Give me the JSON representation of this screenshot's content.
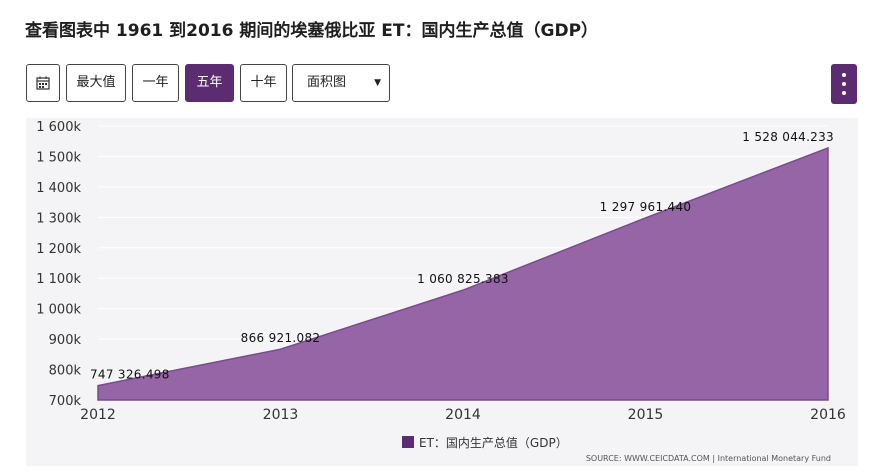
{
  "title": "查看图表中 1961 到2016 期间的埃塞俄比亚 ET：国内生产总值（GDP）",
  "toolbar": {
    "calendar_icon": "calendar-icon",
    "buttons": [
      "最大值",
      "一年",
      "五年",
      "十年"
    ],
    "active_button": "五年",
    "chart_type_select": "面积图",
    "menu_icon": "vertical-dots-icon"
  },
  "colors": {
    "accent": "#5b2c6f",
    "area_fill": "#9565a5",
    "area_stroke": "#7b4a8f"
  },
  "chart_data": {
    "type": "area",
    "x": [
      2012,
      2013,
      2014,
      2015,
      2016
    ],
    "x_tick_labels": [
      "2012",
      "2013",
      "2014",
      "2015",
      "2016"
    ],
    "series": [
      {
        "name": "ET：国内生产总值（GDP）",
        "values": [
          747326.498,
          866921.082,
          1060825.383,
          1297961.44,
          1528044.233
        ],
        "labels": [
          "747 326.498",
          "866 921.082",
          "1 060 825.383",
          "1 297 961.440",
          "1 528 044.233"
        ]
      }
    ],
    "y_ticks": [
      700000,
      800000,
      900000,
      1000000,
      1100000,
      1200000,
      1300000,
      1400000,
      1500000,
      1600000
    ],
    "y_tick_labels": [
      "700k",
      "800k",
      "900k",
      "1 000k",
      "1 100k",
      "1 200k",
      "1 300k",
      "1 400k",
      "1 500k",
      "1 600k"
    ],
    "ylim": [
      700000,
      1600000
    ],
    "grid": true,
    "legend_position": "bottom-center"
  },
  "source": "SOURCE: WWW.CEICDATA.COM | International Monetary Fund"
}
